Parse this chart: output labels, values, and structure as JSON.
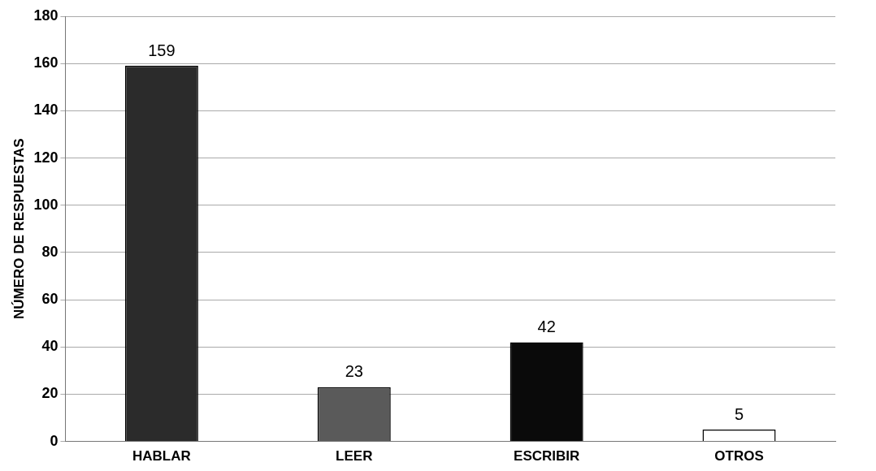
{
  "chart_data": {
    "type": "bar",
    "ylabel": "NÚMERO DE RESPUESTAS",
    "categories": [
      "HABLAR",
      "LEER",
      "ESCRIBIR",
      "OTROS"
    ],
    "values": [
      159,
      23,
      42,
      5
    ],
    "colors": [
      "#2b2b2b",
      "#5a5a5a",
      "#0a0a0a",
      "#ffffff"
    ],
    "ylim": [
      0,
      180
    ],
    "yticks": [
      0,
      20,
      40,
      60,
      80,
      100,
      120,
      140,
      160,
      180
    ],
    "grid": "y",
    "data_labels": true,
    "legend": false
  }
}
